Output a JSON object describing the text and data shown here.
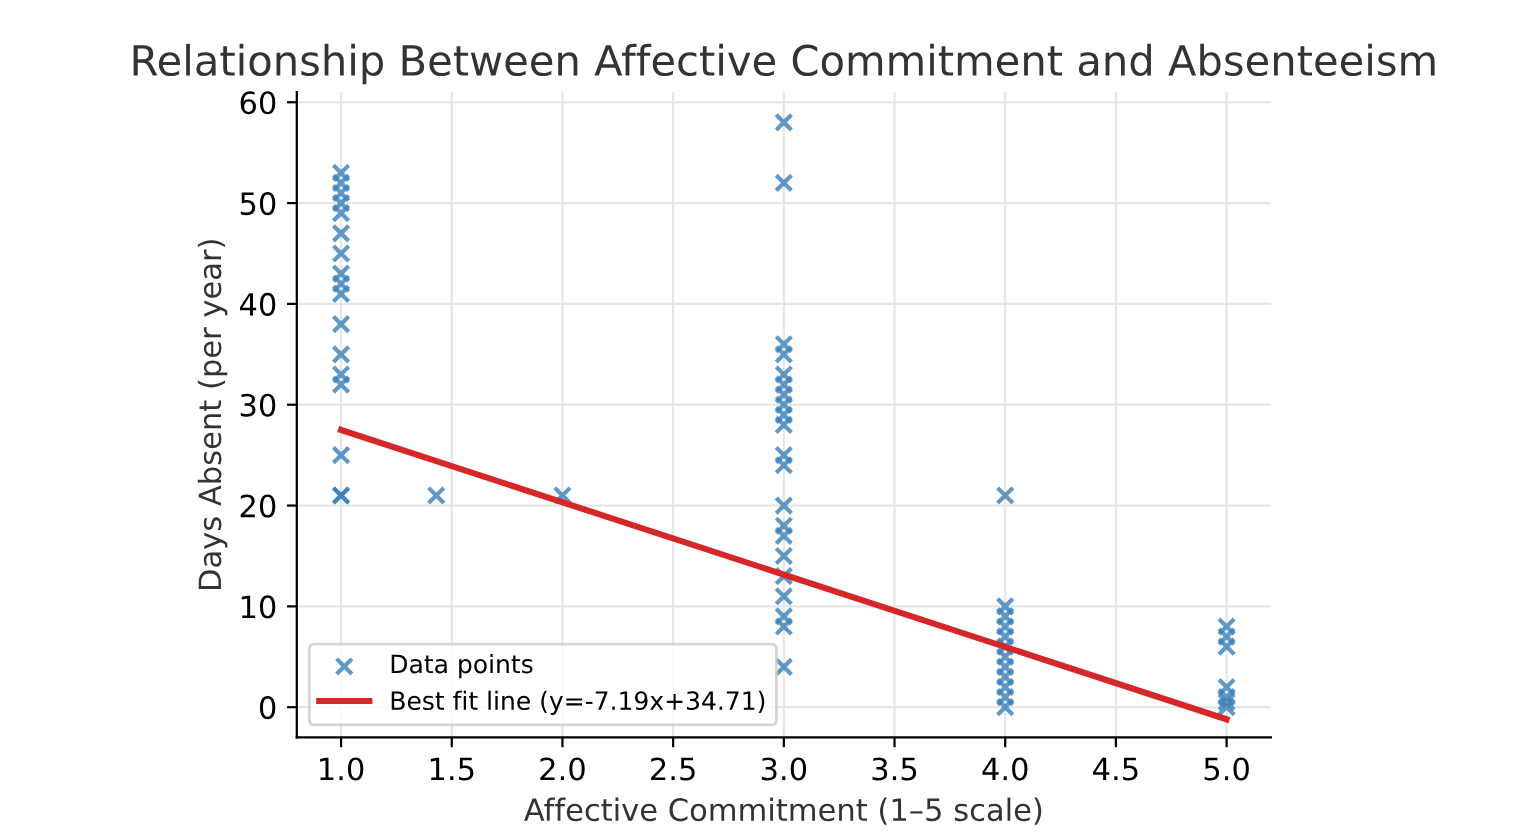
{
  "chart_data": {
    "type": "scatter",
    "title": "Relationship Between Affective Commitment and Absenteeism",
    "xlabel": "Affective Commitment (1–5 scale)",
    "ylabel": "Days Absent (per year)",
    "xlim": [
      0.8,
      5.2
    ],
    "xticks": [
      {
        "value": 1,
        "label": "1.0"
      },
      {
        "value": 1.5,
        "label": "1.5"
      },
      {
        "value": 2,
        "label": "2.0"
      },
      {
        "value": 2.5,
        "label": "2.5"
      },
      {
        "value": 3,
        "label": "3.0"
      },
      {
        "value": 3.5,
        "label": "3.5"
      },
      {
        "value": 4,
        "label": "4.0"
      },
      {
        "value": 4.5,
        "label": "4.5"
      },
      {
        "value": 5,
        "label": "5.0"
      }
    ],
    "ylim": [
      -3,
      61
    ],
    "yticks": [
      0,
      10,
      20,
      30,
      40,
      50,
      60
    ],
    "grid": true,
    "legend": "bottom left",
    "series": [
      {
        "name": "Data points",
        "marker": "cross",
        "color": "#3a7fb8",
        "x": [
          1,
          1,
          1,
          1,
          1,
          1,
          1,
          1,
          1,
          1,
          1,
          1,
          1,
          1,
          1,
          1,
          1,
          1.43,
          2,
          3,
          3,
          3,
          3,
          3,
          3,
          3,
          3,
          3,
          3,
          3,
          3,
          3,
          3,
          3,
          3,
          3,
          3,
          3,
          3,
          3,
          4,
          4,
          4,
          4,
          4,
          4,
          4,
          4,
          4,
          4,
          4,
          4,
          5,
          5,
          5,
          5,
          5,
          5,
          5
        ],
        "values": [
          53,
          52,
          51,
          50,
          49,
          47,
          45,
          43,
          42,
          41,
          38,
          35,
          33,
          32,
          25,
          21,
          21,
          21,
          21,
          58,
          52,
          36,
          35,
          33,
          32,
          31,
          30,
          29,
          28,
          25,
          24,
          20,
          18,
          17,
          15,
          13,
          11,
          9,
          8,
          4,
          21,
          10,
          9,
          8,
          7,
          6,
          5,
          4,
          3,
          2,
          1,
          0,
          8,
          7,
          6,
          2,
          1,
          0.5,
          0
        ]
      },
      {
        "name": "Best fit line (y=-7.19x+34.71)",
        "type": "line",
        "marker": "none",
        "line_style": "solid",
        "color": "#d62728",
        "x": [
          1,
          5
        ],
        "values": [
          27.5,
          -1.2
        ]
      }
    ]
  }
}
